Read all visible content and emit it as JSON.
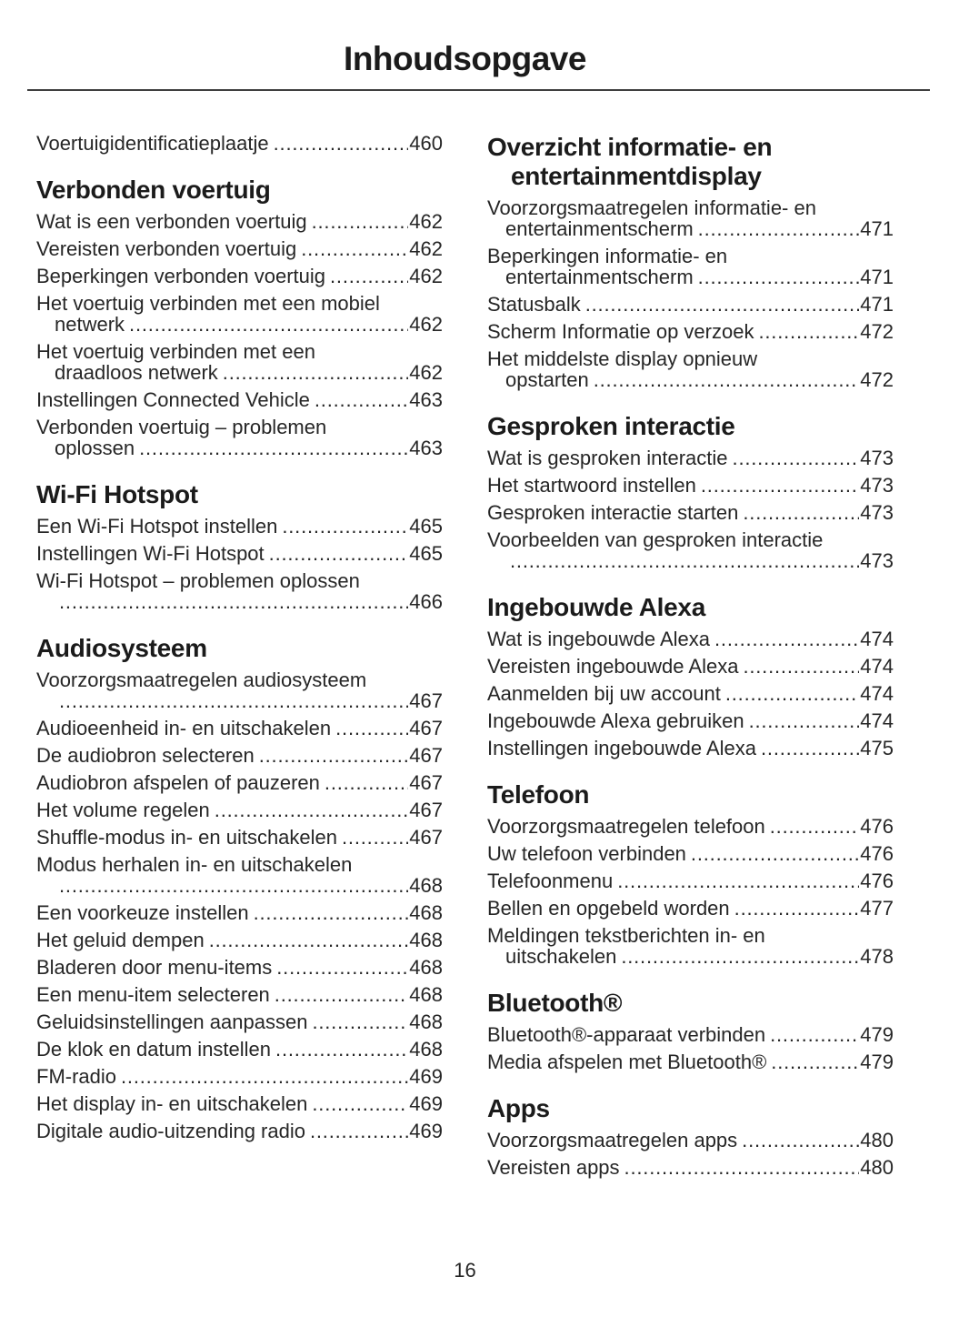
{
  "page": {
    "title": "Inhoudsopgave",
    "footer_page_number": "16"
  },
  "toc": {
    "left_column": [
      {
        "entries": [
          {
            "last_line": "Voertuigidentificatieplaatje",
            "page": "460"
          }
        ]
      },
      {
        "title_lines": [
          "Verbonden voertuig"
        ],
        "entries": [
          {
            "last_line": "Wat is een verbonden voertuig",
            "page": "462"
          },
          {
            "last_line": "Vereisten verbonden voertuig",
            "page": "462"
          },
          {
            "last_line": "Beperkingen verbonden voertuig",
            "page": "462"
          },
          {
            "pre_lines": [
              "Het voertuig verbinden met een mobiel"
            ],
            "last_line": "netwerk",
            "page": "462"
          },
          {
            "pre_lines": [
              "Het voertuig verbinden met een"
            ],
            "last_line": "draadloos netwerk",
            "page": "462"
          },
          {
            "last_line": "Instellingen Connected Vehicle",
            "page": "463"
          },
          {
            "pre_lines": [
              "Verbonden voertuig – problemen"
            ],
            "last_line": "oplossen",
            "page": "463"
          }
        ]
      },
      {
        "title_lines": [
          "Wi-Fi Hotspot"
        ],
        "entries": [
          {
            "last_line": "Een Wi-Fi Hotspot instellen",
            "page": "465"
          },
          {
            "last_line": "Instellingen Wi-Fi Hotspot",
            "page": "465"
          },
          {
            "pre_lines": [
              "Wi-Fi Hotspot – problemen oplossen"
            ],
            "last_line": "",
            "page": "466"
          }
        ]
      },
      {
        "title_lines": [
          "Audiosysteem"
        ],
        "entries": [
          {
            "pre_lines": [
              "Voorzorgsmaatregelen audiosysteem"
            ],
            "last_line": "",
            "page": "467"
          },
          {
            "last_line": "Audioeenheid in- en uitschakelen",
            "page": "467"
          },
          {
            "last_line": "De audiobron selecteren",
            "page": "467"
          },
          {
            "last_line": "Audiobron afspelen of pauzeren",
            "page": "467"
          },
          {
            "last_line": "Het volume regelen",
            "page": "467"
          },
          {
            "last_line": "Shuffle-modus in- en uitschakelen",
            "page": "467"
          },
          {
            "pre_lines": [
              "Modus herhalen in- en uitschakelen"
            ],
            "last_line": "",
            "page": "468"
          },
          {
            "last_line": "Een voorkeuze instellen",
            "page": "468"
          },
          {
            "last_line": "Het geluid dempen",
            "page": "468"
          },
          {
            "last_line": "Bladeren door menu-items",
            "page": "468"
          },
          {
            "last_line": "Een menu-item selecteren",
            "page": "468"
          },
          {
            "last_line": "Geluidsinstellingen aanpassen",
            "page": "468"
          },
          {
            "last_line": "De klok en datum instellen",
            "page": "468"
          },
          {
            "last_line": "FM-radio",
            "page": "469"
          },
          {
            "last_line": "Het display in- en uitschakelen",
            "page": "469"
          },
          {
            "last_line": "Digitale audio-uitzending radio",
            "page": "469"
          }
        ]
      }
    ],
    "right_column": [
      {
        "title_lines": [
          "Overzicht informatie- en",
          "entertainmentdisplay"
        ],
        "entries": [
          {
            "pre_lines": [
              "Voorzorgsmaatregelen informatie- en"
            ],
            "last_line": "entertainmentscherm",
            "page": "471"
          },
          {
            "pre_lines": [
              "Beperkingen informatie- en"
            ],
            "last_line": "entertainmentscherm",
            "page": "471"
          },
          {
            "last_line": "Statusbalk",
            "page": "471"
          },
          {
            "last_line": "Scherm Informatie op verzoek",
            "page": "472"
          },
          {
            "pre_lines": [
              "Het middelste display opnieuw"
            ],
            "last_line": "opstarten",
            "page": "472"
          }
        ]
      },
      {
        "title_lines": [
          "Gesproken interactie"
        ],
        "entries": [
          {
            "last_line": "Wat is gesproken interactie",
            "page": "473"
          },
          {
            "last_line": "Het startwoord instellen",
            "page": "473"
          },
          {
            "last_line": "Gesproken interactie starten",
            "page": "473"
          },
          {
            "pre_lines": [
              "Voorbeelden van gesproken interactie"
            ],
            "last_line": "",
            "page": "473"
          }
        ]
      },
      {
        "title_lines": [
          "Ingebouwde Alexa"
        ],
        "entries": [
          {
            "last_line": "Wat is ingebouwde Alexa",
            "page": "474"
          },
          {
            "last_line": "Vereisten ingebouwde Alexa",
            "page": "474"
          },
          {
            "last_line": "Aanmelden bij uw account",
            "page": "474"
          },
          {
            "last_line": "Ingebouwde Alexa gebruiken",
            "page": "474"
          },
          {
            "last_line": "Instellingen ingebouwde Alexa",
            "page": "475"
          }
        ]
      },
      {
        "title_lines": [
          "Telefoon"
        ],
        "entries": [
          {
            "last_line": "Voorzorgsmaatregelen telefoon",
            "page": "476"
          },
          {
            "last_line": "Uw telefoon verbinden",
            "page": "476"
          },
          {
            "last_line": "Telefoonmenu",
            "page": "476"
          },
          {
            "last_line": "Bellen en opgebeld worden",
            "page": "477"
          },
          {
            "pre_lines": [
              "Meldingen tekstberichten in- en"
            ],
            "last_line": "uitschakelen",
            "page": "478"
          }
        ]
      },
      {
        "title_lines": [
          "Bluetooth®"
        ],
        "entries": [
          {
            "last_line": "Bluetooth®-apparaat verbinden",
            "page": "479"
          },
          {
            "last_line": "Media afspelen met Bluetooth®",
            "page": "479"
          }
        ]
      },
      {
        "title_lines": [
          "Apps"
        ],
        "entries": [
          {
            "last_line": "Voorzorgsmaatregelen apps",
            "page": "480"
          },
          {
            "last_line": "Vereisten apps",
            "page": "480"
          }
        ]
      }
    ]
  }
}
